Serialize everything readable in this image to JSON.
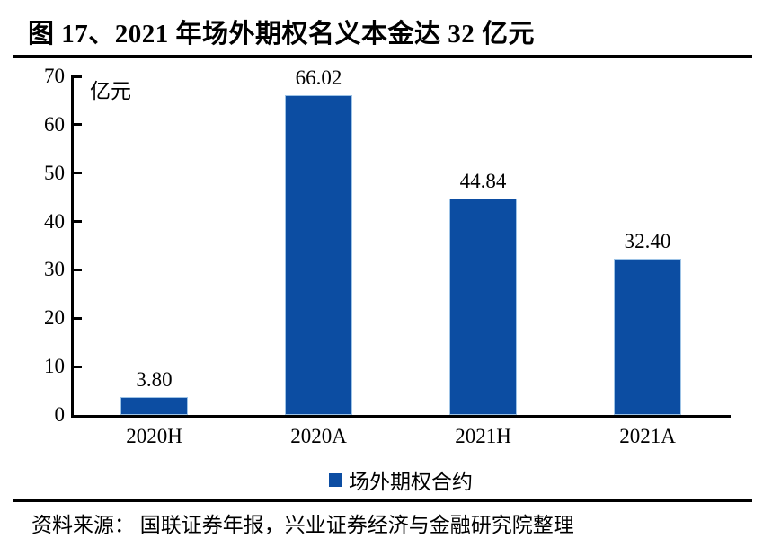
{
  "title": "图 17、2021 年场外期权名义本金达 32 亿元",
  "chart_data": {
    "type": "bar",
    "title": "图 17、2021 年场外期权名义本金达 32 亿元",
    "categories": [
      "2020H",
      "2020A",
      "2021H",
      "2021A"
    ],
    "values": [
      3.8,
      66.02,
      44.84,
      32.4
    ],
    "value_labels": [
      "3.80",
      "66.02",
      "44.84",
      "32.40"
    ],
    "unit_label": "亿元",
    "xlabel": "",
    "ylabel": "亿元",
    "ylim": [
      0,
      70
    ],
    "y_ticks": [
      0,
      10,
      20,
      30,
      40,
      50,
      60,
      70
    ],
    "grid": false,
    "legend_position": "bottom",
    "series_name": "场外期权合约"
  },
  "legend": {
    "label": "场外期权合约"
  },
  "colors": {
    "bar_fill": "#0C4DA2",
    "bar_border": "#9DC3E6",
    "axis": "#000000",
    "text": "#000000"
  },
  "source_note": "资料来源： 国联证券年报，兴业证券经济与金融研究院整理"
}
